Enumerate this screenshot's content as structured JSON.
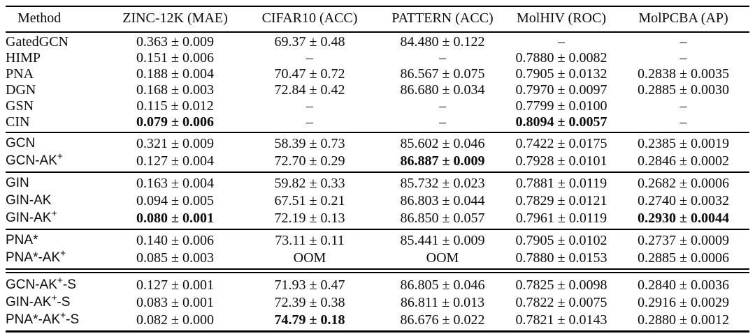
{
  "table": {
    "columns": [
      "Method",
      "ZINC-12K (MAE)",
      "CIFAR10 (ACC)",
      "PATTERN (ACC)",
      "MolHIV (ROC)",
      "MolPCBA (AP)"
    ],
    "missing_marker": "–",
    "oom_label": "OOM",
    "groups": [
      {
        "name_style": "serif",
        "divider": "single",
        "rows": [
          {
            "method": [
              {
                "t": "GatedGCN"
              }
            ],
            "cells": [
              {
                "t": "0.363 ± 0.009"
              },
              {
                "t": "69.37 ± 0.48"
              },
              {
                "t": "84.480 ± 0.122"
              },
              {
                "t": "–"
              },
              {
                "t": "–"
              }
            ]
          },
          {
            "method": [
              {
                "t": "HIMP"
              }
            ],
            "cells": [
              {
                "t": "0.151 ± 0.006"
              },
              {
                "t": "–"
              },
              {
                "t": "–"
              },
              {
                "t": "0.7880 ± 0.0082"
              },
              {
                "t": "–"
              }
            ]
          },
          {
            "method": [
              {
                "t": "PNA"
              }
            ],
            "cells": [
              {
                "t": "0.188 ± 0.004"
              },
              {
                "t": "70.47 ± 0.72"
              },
              {
                "t": "86.567 ± 0.075"
              },
              {
                "t": "0.7905 ± 0.0132"
              },
              {
                "t": "0.2838 ± 0.0035"
              }
            ]
          },
          {
            "method": [
              {
                "t": "DGN"
              }
            ],
            "cells": [
              {
                "t": "0.168 ± 0.003"
              },
              {
                "t": "72.84 ± 0.42"
              },
              {
                "t": "86.680 ± 0.034"
              },
              {
                "t": "0.7970 ± 0.0097"
              },
              {
                "t": "0.2885 ± 0.0030"
              }
            ]
          },
          {
            "method": [
              {
                "t": "GSN"
              }
            ],
            "cells": [
              {
                "t": "0.115 ± 0.012"
              },
              {
                "t": "–"
              },
              {
                "t": "–"
              },
              {
                "t": "0.7799 ± 0.0100"
              },
              {
                "t": "–"
              }
            ]
          },
          {
            "method": [
              {
                "t": "CIN"
              }
            ],
            "cells": [
              {
                "t": "0.079 ± 0.006",
                "b": true
              },
              {
                "t": "–"
              },
              {
                "t": "–"
              },
              {
                "t": "0.8094 ± 0.0057",
                "b": true
              },
              {
                "t": "–"
              }
            ]
          }
        ]
      },
      {
        "name_style": "sans",
        "divider": "single",
        "rows": [
          {
            "method": [
              {
                "t": "GCN"
              }
            ],
            "cells": [
              {
                "t": "0.321 ± 0.009"
              },
              {
                "t": "58.39 ± 0.73"
              },
              {
                "t": "85.602 ± 0.046"
              },
              {
                "t": "0.7422 ± 0.0175"
              },
              {
                "t": "0.2385 ± 0.0019"
              }
            ]
          },
          {
            "method": [
              {
                "t": "GCN-AK"
              },
              {
                "t": "+",
                "sup": true
              }
            ],
            "cells": [
              {
                "t": "0.127 ± 0.004"
              },
              {
                "t": "72.70 ± 0.29"
              },
              {
                "t": "86.887 ± 0.009",
                "b": true
              },
              {
                "t": "0.7928 ± 0.0101"
              },
              {
                "t": "0.2846 ± 0.0002"
              }
            ]
          }
        ]
      },
      {
        "name_style": "sans",
        "divider": "single",
        "rows": [
          {
            "method": [
              {
                "t": "GIN"
              }
            ],
            "cells": [
              {
                "t": "0.163 ± 0.004"
              },
              {
                "t": "59.82 ± 0.33"
              },
              {
                "t": "85.732 ± 0.023"
              },
              {
                "t": "0.7881 ± 0.0119"
              },
              {
                "t": "0.2682 ± 0.0006"
              }
            ]
          },
          {
            "method": [
              {
                "t": "GIN-AK"
              }
            ],
            "cells": [
              {
                "t": "0.094 ± 0.005"
              },
              {
                "t": "67.51 ± 0.21"
              },
              {
                "t": "86.803 ± 0.044"
              },
              {
                "t": "0.7829 ± 0.0121"
              },
              {
                "t": "0.2740 ± 0.0032"
              }
            ]
          },
          {
            "method": [
              {
                "t": "GIN-AK"
              },
              {
                "t": "+",
                "sup": true
              }
            ],
            "cells": [
              {
                "t": "0.080 ± 0.001",
                "b": true
              },
              {
                "t": "72.19 ± 0.13"
              },
              {
                "t": "86.850 ± 0.057"
              },
              {
                "t": "0.7961 ± 0.0119"
              },
              {
                "t": "0.2930 ± 0.0044",
                "b": true
              }
            ]
          }
        ]
      },
      {
        "name_style": "sans",
        "divider": "single",
        "rows": [
          {
            "method": [
              {
                "t": "PNA*"
              }
            ],
            "cells": [
              {
                "t": "0.140 ± 0.006"
              },
              {
                "t": "73.11 ± 0.11"
              },
              {
                "t": "85.441 ± 0.009"
              },
              {
                "t": "0.7905 ± 0.0102"
              },
              {
                "t": "0.2737 ± 0.0009"
              }
            ]
          },
          {
            "method": [
              {
                "t": "PNA*-AK"
              },
              {
                "t": "+",
                "sup": true
              }
            ],
            "cells": [
              {
                "t": "0.085 ± 0.003"
              },
              {
                "t": "OOM"
              },
              {
                "t": "OOM"
              },
              {
                "t": "0.7880 ± 0.0153"
              },
              {
                "t": "0.2885 ± 0.0006"
              }
            ]
          }
        ]
      },
      {
        "name_style": "sans",
        "divider": "double",
        "rows": [
          {
            "method": [
              {
                "t": "GCN-AK"
              },
              {
                "t": "+",
                "sup": true
              },
              {
                "t": "-S"
              }
            ],
            "cells": [
              {
                "t": "0.127 ± 0.001"
              },
              {
                "t": "71.93 ± 0.47"
              },
              {
                "t": "86.805 ± 0.046"
              },
              {
                "t": "0.7825 ± 0.0098"
              },
              {
                "t": "0.2840 ± 0.0036"
              }
            ]
          },
          {
            "method": [
              {
                "t": "GIN-AK"
              },
              {
                "t": "+",
                "sup": true
              },
              {
                "t": "-S"
              }
            ],
            "cells": [
              {
                "t": "0.083 ± 0.001"
              },
              {
                "t": "72.39 ± 0.38"
              },
              {
                "t": "86.811 ± 0.013"
              },
              {
                "t": "0.7822 ± 0.0075"
              },
              {
                "t": "0.2916 ± 0.0029"
              }
            ]
          },
          {
            "method": [
              {
                "t": "PNA*-AK"
              },
              {
                "t": "+",
                "sup": true
              },
              {
                "t": "-S"
              }
            ],
            "cells": [
              {
                "t": "0.082 ± 0.000"
              },
              {
                "t": "74.79 ± 0.18",
                "b": true
              },
              {
                "t": "86.676 ± 0.022"
              },
              {
                "t": "0.7821 ± 0.0143"
              },
              {
                "t": "0.2880 ± 0.0012"
              }
            ]
          }
        ]
      }
    ]
  },
  "colors": {
    "background": "#ffffff",
    "text": "#0c0c0c",
    "rule": "#000000"
  }
}
